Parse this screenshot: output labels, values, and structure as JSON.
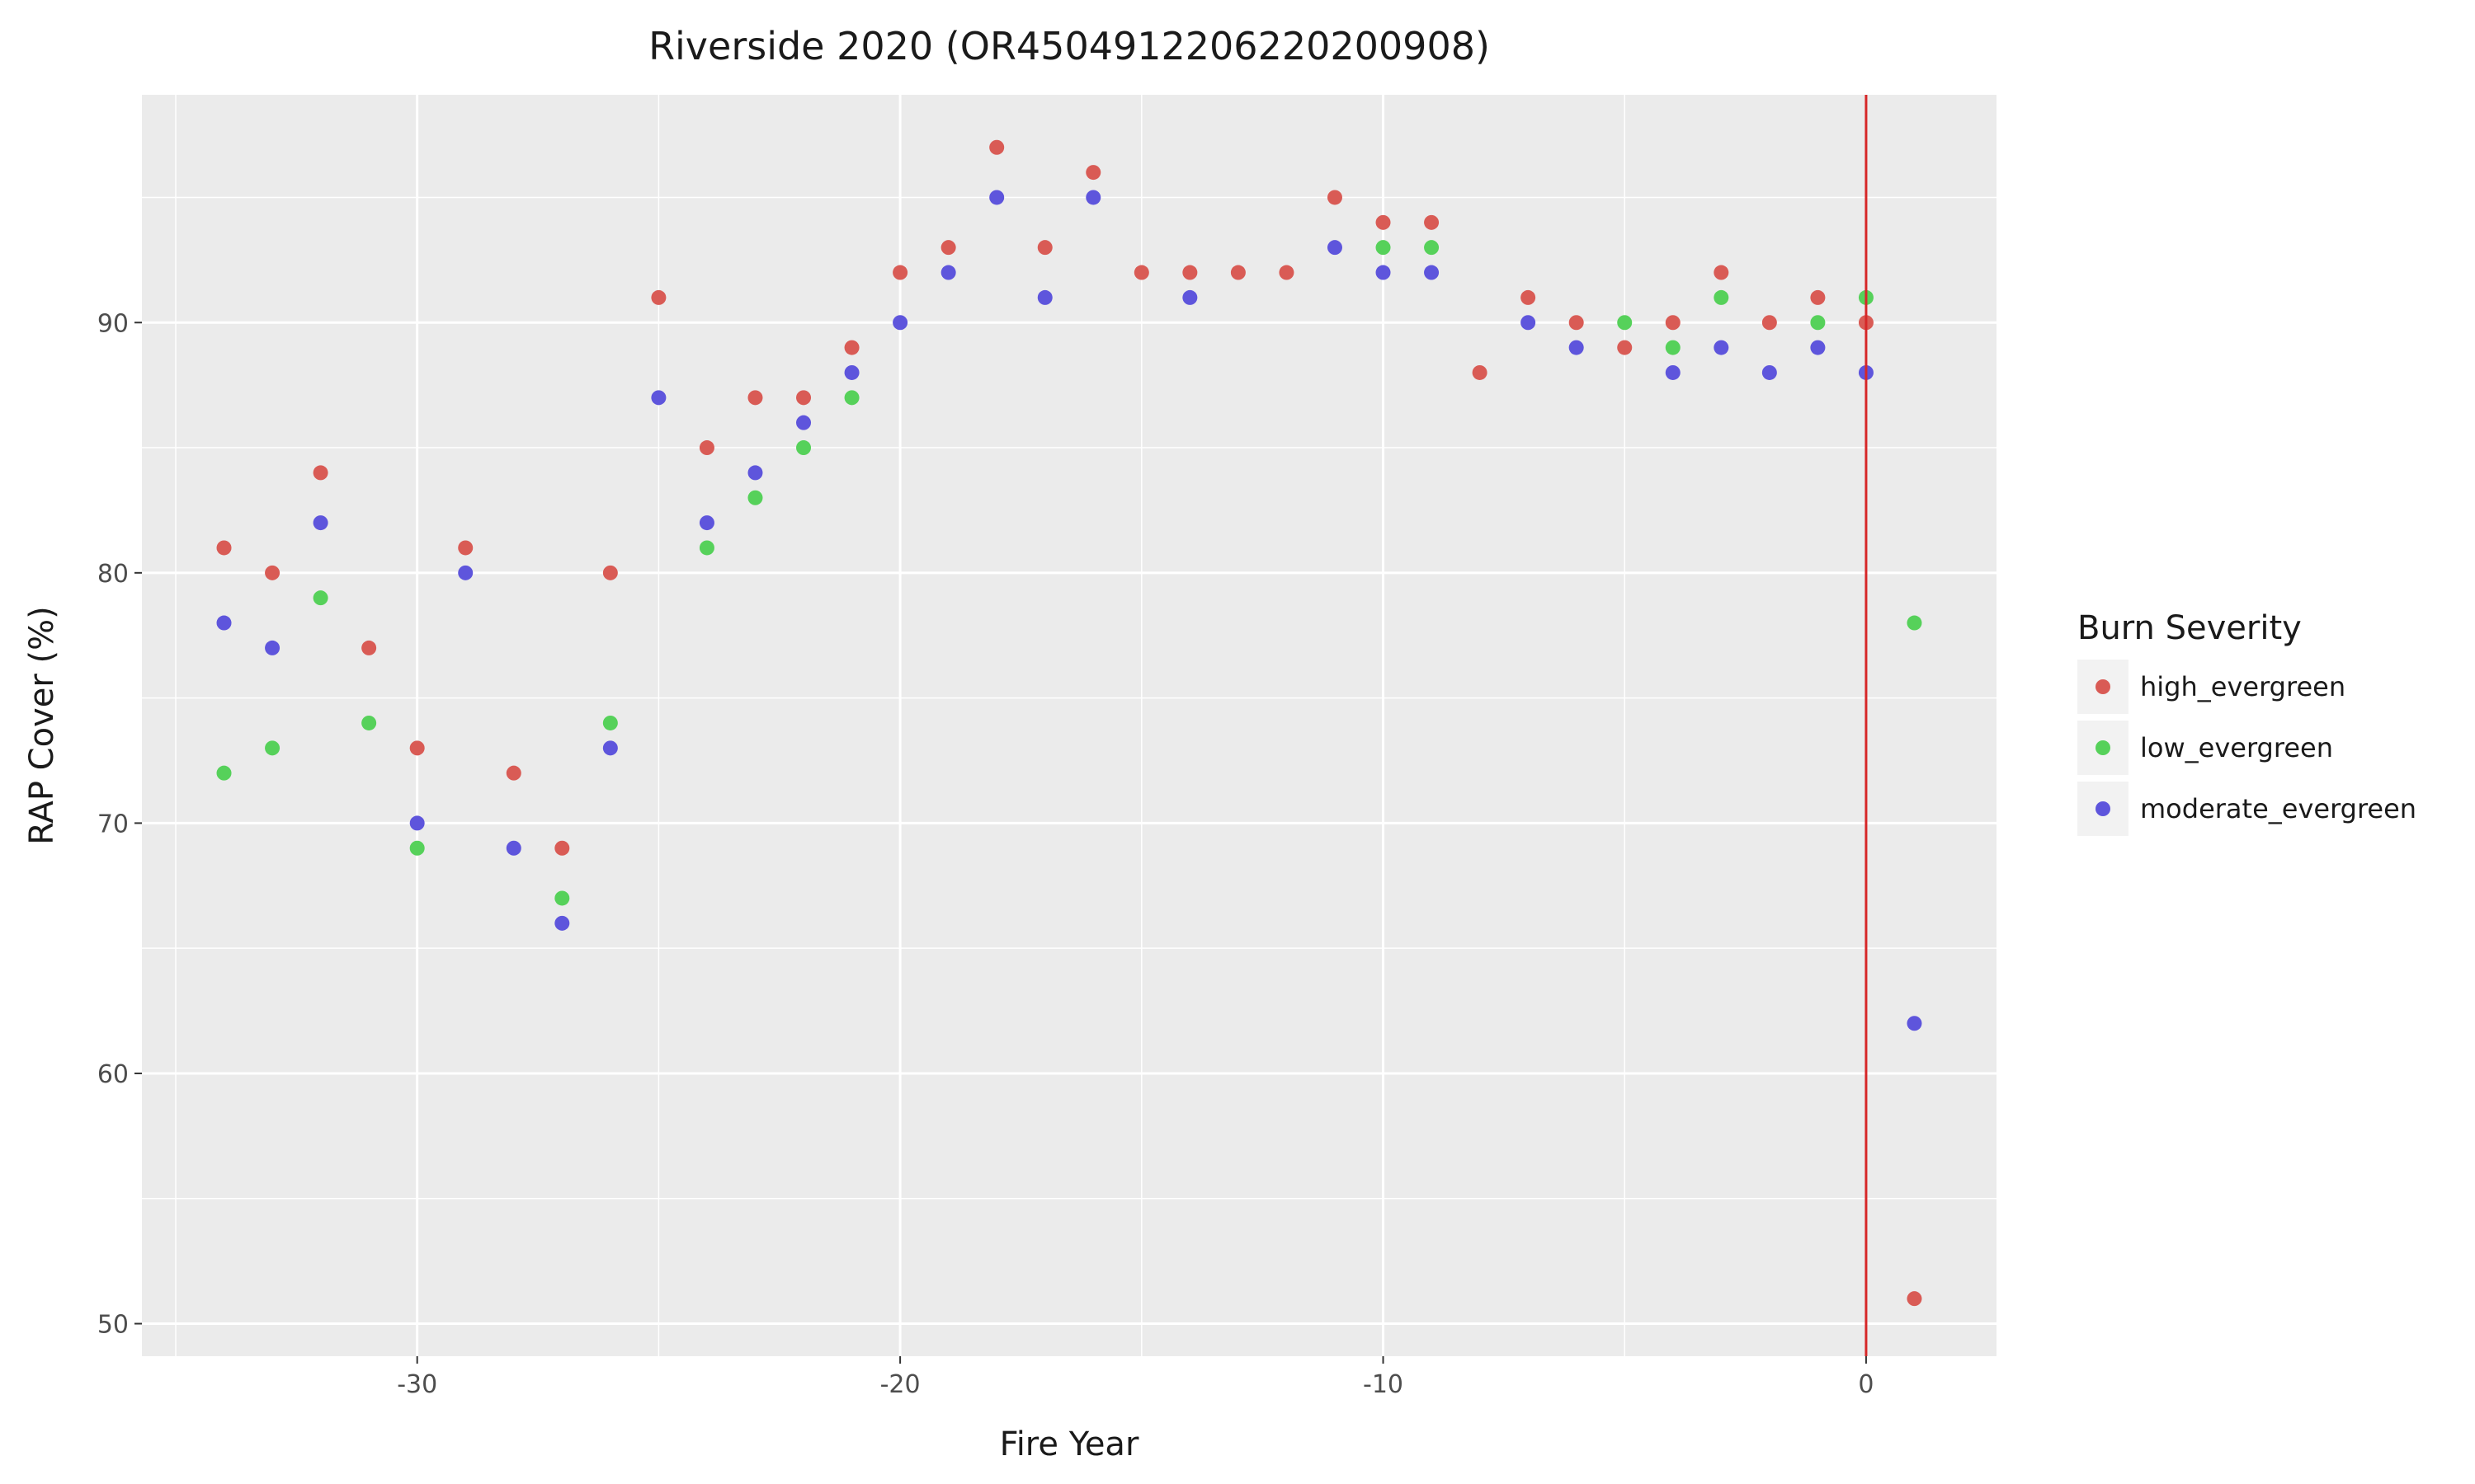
{
  "chart_data": {
    "type": "scatter",
    "title": "Riverside 2020 (OR4504912206220200908)",
    "xlabel": "Fire Year",
    "ylabel": "RAP Cover (%)",
    "xlim": [
      -35.7,
      2.7
    ],
    "ylim": [
      48.7,
      99.1
    ],
    "x_ticks": [
      -30,
      -20,
      -10,
      0
    ],
    "y_ticks": [
      50,
      60,
      70,
      80,
      90
    ],
    "x_tick_labels": [
      "-30",
      "-20",
      "-10",
      "0"
    ],
    "y_tick_labels": [
      "50",
      "60",
      "70",
      "80",
      "90"
    ],
    "grid": true,
    "vline": {
      "x": 0,
      "color": "#d62728"
    },
    "legend": {
      "title": "Burn Severity",
      "position": "right"
    },
    "series": [
      {
        "name": "high_evergreen",
        "color": "#d95b55",
        "x": [
          -34,
          -33,
          -32,
          -31,
          -30,
          -29,
          -28,
          -27,
          -26,
          -25,
          -24,
          -23,
          -22,
          -21,
          -20,
          -19,
          -18,
          -17,
          -16,
          -15,
          -14,
          -13,
          -12,
          -11,
          -10,
          -9,
          -8,
          -7,
          -6,
          -5,
          -4,
          -3,
          -2,
          -1,
          0,
          1
        ],
        "y": [
          81,
          80,
          84,
          77,
          73,
          81,
          72,
          69,
          80,
          91,
          85,
          87,
          87,
          89,
          92,
          93,
          97,
          93,
          96,
          92,
          92,
          92,
          92,
          95,
          94,
          94,
          88,
          91,
          90,
          89,
          90,
          92,
          90,
          91,
          90,
          51
        ]
      },
      {
        "name": "low_evergreen",
        "color": "#56d15a",
        "x": [
          -34,
          -33,
          -32,
          -31,
          -30,
          -27,
          -26,
          -24,
          -23,
          -22,
          -21,
          -10,
          -9,
          -5,
          -4,
          -3,
          -1,
          0,
          1
        ],
        "y": [
          72,
          73,
          79,
          74,
          69,
          67,
          74,
          81,
          83,
          85,
          87,
          93,
          93,
          90,
          89,
          91,
          90,
          91,
          78
        ]
      },
      {
        "name": "moderate_evergreen",
        "color": "#5e55dc",
        "x": [
          -34,
          -33,
          -32,
          -30,
          -29,
          -28,
          -27,
          -26,
          -25,
          -24,
          -23,
          -22,
          -21,
          -20,
          -19,
          -18,
          -17,
          -16,
          -14,
          -11,
          -10,
          -9,
          -7,
          -6,
          -4,
          -3,
          -2,
          -1,
          0,
          1
        ],
        "y": [
          78,
          77,
          82,
          70,
          80,
          69,
          66,
          73,
          87,
          82,
          84,
          86,
          88,
          90,
          92,
          95,
          91,
          95,
          91,
          93,
          92,
          92,
          90,
          89,
          88,
          89,
          88,
          89,
          88,
          62
        ]
      }
    ]
  }
}
